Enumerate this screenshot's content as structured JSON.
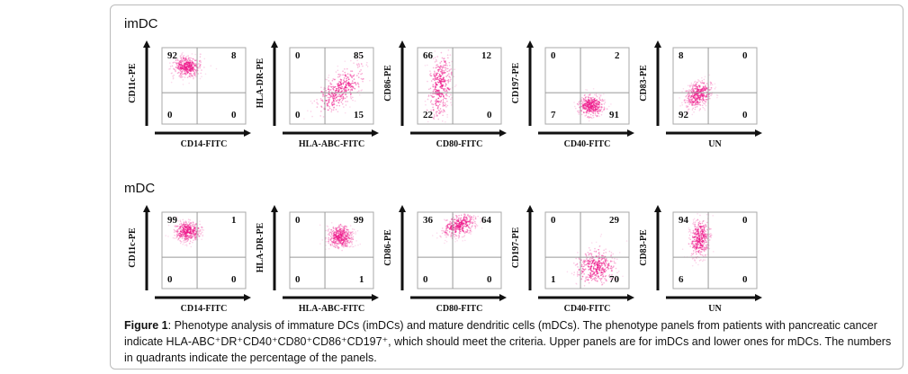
{
  "rows": [
    {
      "label": "imDC",
      "panels": [
        {
          "x": "CD14-FITC",
          "y": "CD11c-PE",
          "q": [
            "92",
            "8",
            "0",
            "0"
          ]
        },
        {
          "x": "HLA-ABC-FITC",
          "y": "HLA-DR-PE",
          "q": [
            "0",
            "85",
            "0",
            "15"
          ]
        },
        {
          "x": "CD80-FITC",
          "y": "CD86-PE",
          "q": [
            "66",
            "12",
            "22",
            "0"
          ]
        },
        {
          "x": "CD40-FITC",
          "y": "CD197-PE",
          "q": [
            "0",
            "2",
            "7",
            "91"
          ]
        },
        {
          "x": "UN",
          "y": "CD83-PE",
          "q": [
            "8",
            "0",
            "92",
            "0"
          ]
        }
      ]
    },
    {
      "label": "mDC",
      "panels": [
        {
          "x": "CD14-FITC",
          "y": "CD11c-PE",
          "q": [
            "99",
            "1",
            "0",
            "0"
          ]
        },
        {
          "x": "HLA-ABC-FITC",
          "y": "HLA-DR-PE",
          "q": [
            "0",
            "99",
            "0",
            "1"
          ]
        },
        {
          "x": "CD80-FITC",
          "y": "CD86-PE",
          "q": [
            "36",
            "64",
            "0",
            "0"
          ]
        },
        {
          "x": "CD40-FITC",
          "y": "CD197-PE",
          "q": [
            "0",
            "29",
            "1",
            "70"
          ]
        },
        {
          "x": "UN",
          "y": "CD83-PE",
          "q": [
            "94",
            "0",
            "6",
            "0"
          ]
        }
      ]
    }
  ],
  "caption": {
    "label": "Figure 1",
    "text": ": Phenotype analysis of immature DCs (imDCs) and mature dendritic cells (mDCs). The phenotype panels from patients with pancreatic cancer indicate HLA-ABC⁺DR⁺CD40⁺CD80⁺CD86⁺CD197⁺, which should meet the criteria. Upper panels are for imDCs and lower ones for mDCs. The numbers in quadrants indicate the percentage of the panels."
  },
  "colors": {
    "dots": "#ee1c8c"
  }
}
